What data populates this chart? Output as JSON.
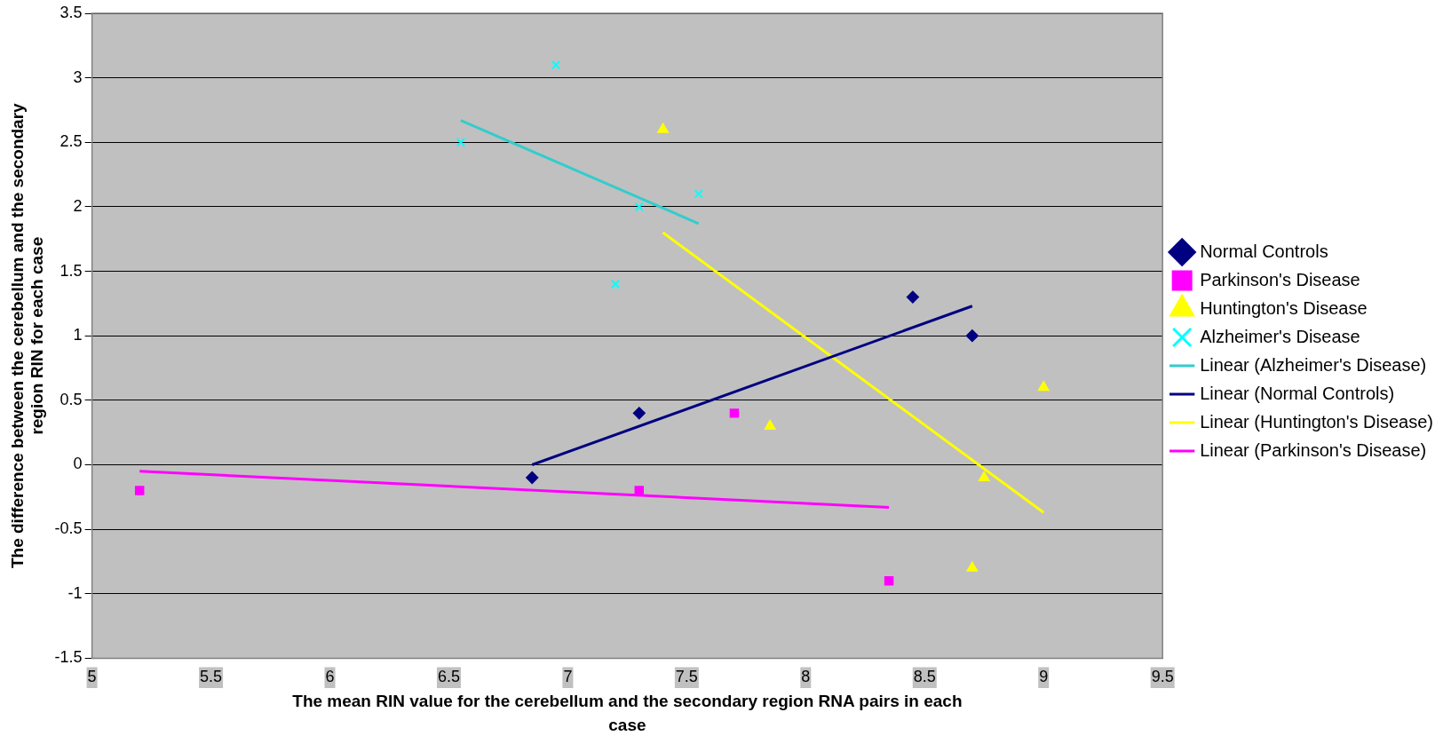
{
  "chart_data": {
    "type": "scatter",
    "xlabel": "The mean RIN value for the cerebellum and the secondary region RNA pairs in each case",
    "ylabel": "The difference between the cerebellum and the secondary region RIN for each case",
    "xlim": [
      5,
      9.5
    ],
    "xticks": [
      5,
      5.5,
      6,
      6.5,
      7,
      7.5,
      8,
      8.5,
      9,
      9.5
    ],
    "ylim": [
      -1.5,
      3.5
    ],
    "yticks": [
      -1.5,
      -1,
      -0.5,
      0,
      0.5,
      1,
      1.5,
      2,
      2.5,
      3,
      3.5
    ],
    "grid": "y",
    "legend": "right",
    "series": [
      {
        "name": "Normal Controls",
        "color": "#000080",
        "marker": "diamond",
        "x": [
          6.85,
          7.3,
          8.45,
          8.7
        ],
        "values": [
          -0.1,
          0.4,
          1.3,
          1.0
        ]
      },
      {
        "name": "Parkinson's Disease",
        "color": "#ff00ff",
        "marker": "square",
        "x": [
          5.2,
          7.3,
          7.7,
          8.35
        ],
        "values": [
          -0.2,
          -0.2,
          0.4,
          -0.9
        ]
      },
      {
        "name": "Huntington's Disease",
        "color": "#ffff00",
        "marker": "triangle",
        "x": [
          7.4,
          7.85,
          8.7,
          8.75,
          9.0
        ],
        "values": [
          2.6,
          0.3,
          -0.8,
          -0.1,
          0.6
        ]
      },
      {
        "name": "Alzheimer's Disease",
        "color": "#00ffff",
        "marker": "cross",
        "x": [
          6.55,
          6.95,
          7.2,
          7.3,
          7.55
        ],
        "values": [
          2.5,
          3.1,
          1.4,
          2.0,
          2.1
        ]
      },
      {
        "name": "Linear (Alzheimer's Disease)",
        "type": "line",
        "color": "#33cccc",
        "marker": "none",
        "x": [
          6.55,
          7.55
        ],
        "values": [
          2.67,
          1.87
        ]
      },
      {
        "name": "Linear (Normal Controls)",
        "type": "line",
        "color": "#000080",
        "marker": "none",
        "x": [
          6.85,
          8.7
        ],
        "values": [
          0.0,
          1.23
        ]
      },
      {
        "name": "Linear (Huntington's Disease)",
        "type": "line",
        "color": "#ffff00",
        "marker": "none",
        "x": [
          7.4,
          9.0
        ],
        "values": [
          1.8,
          -0.37
        ]
      },
      {
        "name": "Linear (Parkinson's Disease)",
        "type": "line",
        "color": "#ff00ff",
        "marker": "none",
        "x": [
          5.2,
          8.35
        ],
        "values": [
          -0.05,
          -0.33
        ]
      }
    ]
  }
}
